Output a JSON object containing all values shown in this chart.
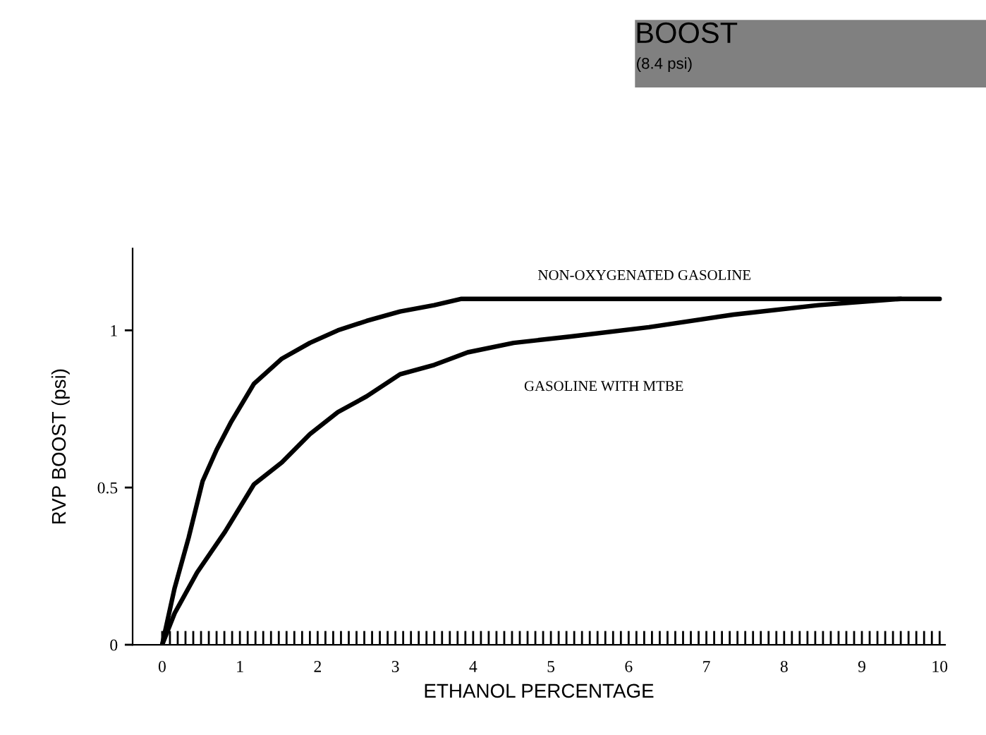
{
  "chart_data": {
    "type": "line",
    "title": "BOOST",
    "subtitle": "(8.4 psi)",
    "xlabel": "ETHANOL PERCENTAGE",
    "ylabel": "RVP BOOST (psi)",
    "xlim": [
      -0.38,
      10.07
    ],
    "ylim": [
      0,
      1.26
    ],
    "xticks": [
      0,
      1,
      2,
      3,
      4,
      5,
      6,
      7,
      8,
      9,
      10
    ],
    "yticks": [
      0,
      0.5,
      1
    ],
    "grid": false,
    "marker": "none",
    "line_style": "solid",
    "series": [
      {
        "name": "NON-OXYGENATED GASOLINE",
        "color": "#000000",
        "x": [
          0,
          0.16,
          0.34,
          0.52,
          0.7,
          0.89,
          1.18,
          1.54,
          1.9,
          2.26,
          2.63,
          3.06,
          3.5,
          3.85,
          10
        ],
        "values": [
          0,
          0.18,
          0.34,
          0.52,
          0.62,
          0.71,
          0.83,
          0.91,
          0.96,
          1.0,
          1.03,
          1.06,
          1.08,
          1.1,
          1.1
        ]
      },
      {
        "name": "GASOLINE WITH MTBE",
        "color": "#000000",
        "x": [
          0,
          0.16,
          0.45,
          0.81,
          1.18,
          1.54,
          1.9,
          2.26,
          2.63,
          3.06,
          3.5,
          3.93,
          4.52,
          5.24,
          6.26,
          7.35,
          8.44,
          9.5
        ],
        "values": [
          0,
          0.1,
          0.23,
          0.36,
          0.51,
          0.58,
          0.67,
          0.74,
          0.79,
          0.86,
          0.89,
          0.93,
          0.96,
          0.98,
          1.01,
          1.05,
          1.08,
          1.1
        ]
      }
    ]
  }
}
